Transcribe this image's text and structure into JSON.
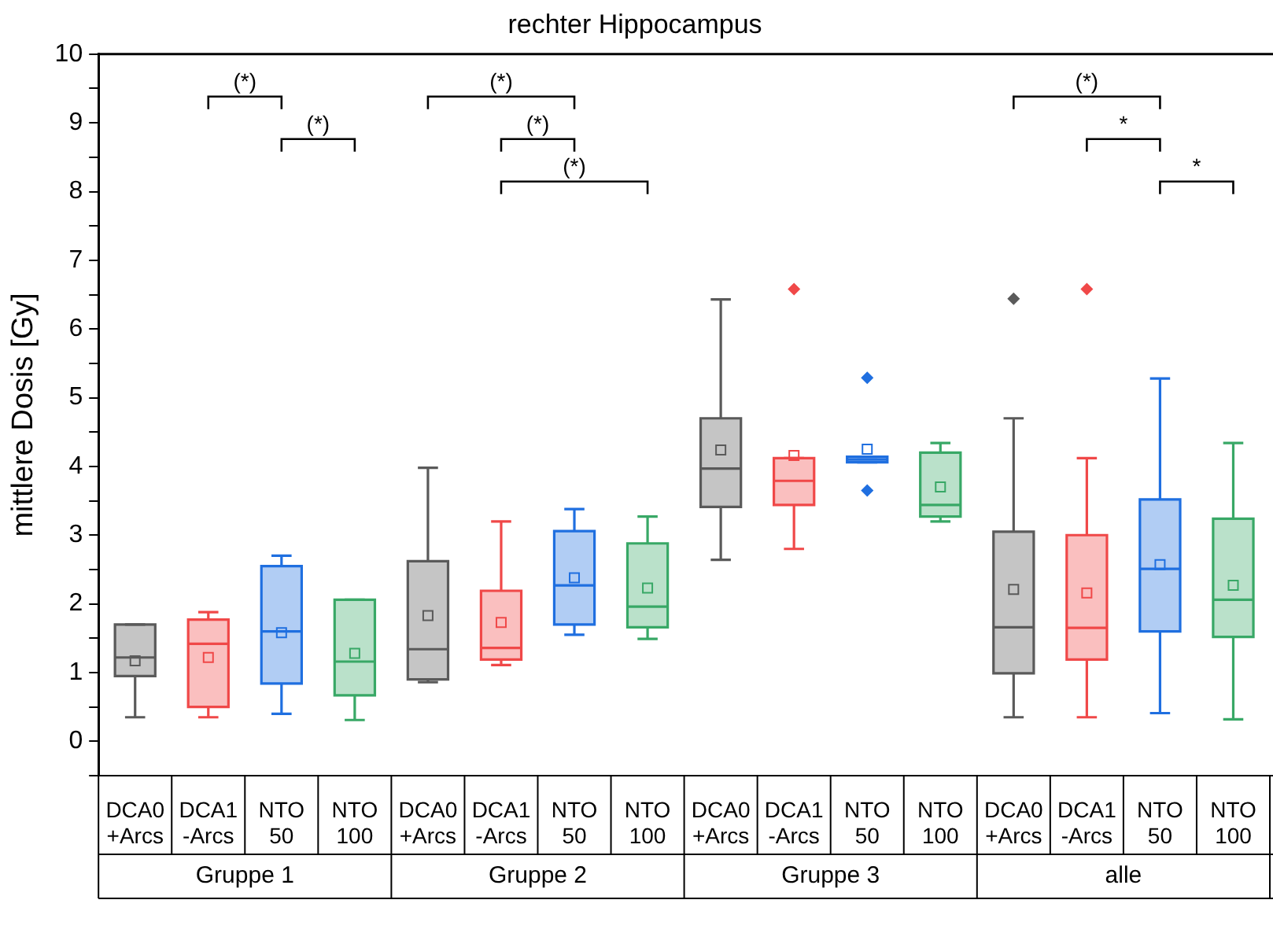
{
  "chart_data": {
    "type": "box",
    "title": "rechter Hippocampus",
    "ylabel": "mittlere Dosis [Gy]",
    "categories": [
      "DCA0 +Arcs",
      "DCA1 -Arcs",
      "NTO 50",
      "NTO 100",
      "DCA0 +Arcs",
      "DCA1 -Arcs",
      "NTO 50",
      "NTO 100",
      "DCA0 +Arcs",
      "DCA1 -Arcs",
      "NTO 50",
      "NTO 100",
      "DCA0 +Arcs",
      "DCA1 -Arcs",
      "NTO 50",
      "NTO 100"
    ],
    "colors": [
      "#5a5a5a",
      "#f04848",
      "#1f6fe0",
      "#38a866",
      "#5a5a5a",
      "#f04848",
      "#1f6fe0",
      "#38a866",
      "#5a5a5a",
      "#f04848",
      "#1f6fe0",
      "#38a866",
      "#5a5a5a",
      "#f04848",
      "#1f6fe0",
      "#38a866"
    ],
    "boxes": [
      {
        "low": 0.35,
        "q1": 0.95,
        "median": 1.22,
        "q3": 1.7,
        "high": 1.7,
        "mean": 1.17
      },
      {
        "low": 0.35,
        "q1": 0.5,
        "median": 1.42,
        "q3": 1.77,
        "high": 1.88,
        "mean": 1.22
      },
      {
        "low": 0.4,
        "q1": 0.84,
        "median": 1.6,
        "q3": 2.55,
        "high": 2.7,
        "mean": 1.58
      },
      {
        "low": 0.31,
        "q1": 0.67,
        "median": 1.16,
        "q3": 2.06,
        "high": 2.06,
        "mean": 1.28
      },
      {
        "low": 0.86,
        "q1": 0.9,
        "median": 1.34,
        "q3": 2.62,
        "high": 3.98,
        "mean": 1.83
      },
      {
        "low": 1.11,
        "q1": 1.19,
        "median": 1.36,
        "q3": 2.19,
        "high": 3.2,
        "mean": 1.73
      },
      {
        "low": 1.55,
        "q1": 1.7,
        "median": 2.27,
        "q3": 3.06,
        "high": 3.38,
        "mean": 2.38
      },
      {
        "low": 1.49,
        "q1": 1.66,
        "median": 1.96,
        "q3": 2.88,
        "high": 3.27,
        "mean": 2.23
      },
      {
        "low": 2.64,
        "q1": 3.41,
        "median": 3.97,
        "q3": 4.7,
        "high": 6.43,
        "mean": 4.24
      },
      {
        "low": 2.8,
        "q1": 3.44,
        "median": 3.79,
        "q3": 4.12,
        "high": 4.12,
        "mean": 4.16,
        "outliers": [
          6.58
        ]
      },
      {
        "low": 4.06,
        "q1": 4.06,
        "median": 4.1,
        "q3": 4.14,
        "high": 4.14,
        "mean": 4.25,
        "outliers": [
          5.29,
          3.65
        ]
      },
      {
        "low": 3.2,
        "q1": 3.27,
        "median": 3.44,
        "q3": 4.2,
        "high": 4.34,
        "mean": 3.7
      },
      {
        "low": 0.35,
        "q1": 0.99,
        "median": 1.66,
        "q3": 3.05,
        "high": 4.7,
        "mean": 2.21,
        "outliers": [
          6.44
        ]
      },
      {
        "low": 0.35,
        "q1": 1.19,
        "median": 1.65,
        "q3": 3.0,
        "high": 4.12,
        "mean": 2.16,
        "outliers": [
          6.58
        ]
      },
      {
        "low": 0.41,
        "q1": 1.6,
        "median": 2.51,
        "q3": 3.52,
        "high": 5.28,
        "mean": 2.57
      },
      {
        "low": 0.32,
        "q1": 1.52,
        "median": 2.06,
        "q3": 3.24,
        "high": 4.34,
        "mean": 2.27
      }
    ],
    "ylim": [
      -0.5,
      10
    ],
    "yticks": [
      {
        "value": -0.5,
        "label": null
      },
      0,
      {
        "value": 0.5,
        "label": null
      },
      1,
      {
        "value": 1.5,
        "label": null
      },
      2,
      {
        "value": 2.5,
        "label": null
      },
      3,
      {
        "value": 3.5,
        "label": null
      },
      4,
      {
        "value": 4.5,
        "label": null
      },
      5,
      {
        "value": 5.5,
        "label": null
      },
      6,
      {
        "value": 6.5,
        "label": null
      },
      7,
      {
        "value": 7.5,
        "label": null
      },
      8,
      {
        "value": 8.5,
        "label": null
      },
      9,
      {
        "value": 9.5,
        "label": null
      },
      10
    ],
    "annotations": [
      "Gruppe 1",
      "Gruppe 2",
      "Gruppe 3",
      "alle",
      "(*)",
      "(*)",
      "(*)",
      "(*)",
      "(*)",
      "(*)",
      "*",
      "*"
    ]
  }
}
